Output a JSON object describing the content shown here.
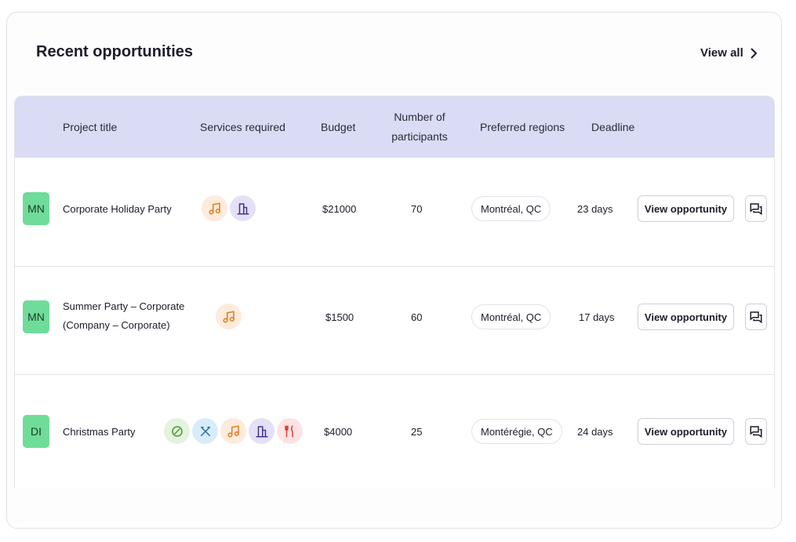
{
  "header": {
    "title": "Recent opportunities",
    "link": "View all"
  },
  "table": {
    "columns": [
      "Project title",
      "Services required",
      "Budget",
      "Number of participants",
      "Preferred regions",
      "Deadline"
    ],
    "rows": [
      {
        "initials": "MN",
        "title": "Corporate Holiday Party",
        "budget": "$21000",
        "participants": "70",
        "region": "Montréal, QC",
        "deadline": "23 days",
        "action": "View opportunity"
      },
      {
        "initials": "MN",
        "title": "Summer Party – Corporate (Company – Corporate)",
        "budget": "$1500",
        "participants": "60",
        "region": "Montréal, QC",
        "deadline": "17 days",
        "action": "View opportunity"
      },
      {
        "initials": "DI",
        "title": "Christmas Party",
        "budget": "$4000",
        "participants": "25",
        "region": "Montérégie, QC",
        "deadline": "24 days",
        "action": "View opportunity"
      }
    ]
  }
}
